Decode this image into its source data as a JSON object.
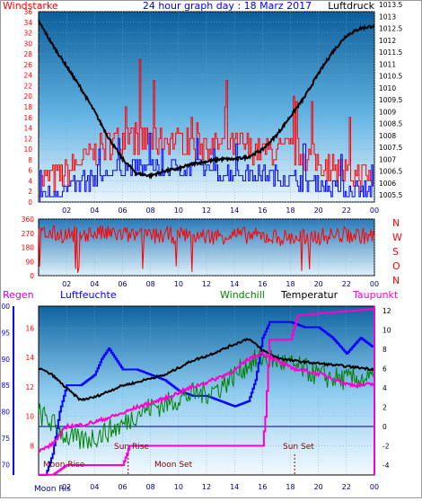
{
  "title": "24 hour graph day : 18 Marz 2017",
  "colors": {
    "red": "#ff0000",
    "blue": "#0000ff",
    "black": "#000000",
    "green": "#008000",
    "magenta": "#ff00cc",
    "navy": "#000080"
  },
  "wind_panel": {
    "left_label": "Windstarke",
    "right_label": "Luftdruck",
    "left_ticks": [
      "0",
      "2",
      "4",
      "6",
      "8",
      "10",
      "12",
      "14",
      "16",
      "18",
      "20",
      "22",
      "24",
      "26",
      "28",
      "30",
      "32",
      "34",
      "36"
    ],
    "right_ticks": [
      "1005.5",
      "1006",
      "1006.5",
      "1007",
      "1007.5",
      "1008",
      "1008.5",
      "1009",
      "1009.5",
      "1010",
      "1010.5",
      "1011",
      "1011.5",
      "1012",
      "1012.5",
      "1013",
      "1013.5"
    ],
    "x_ticks": [
      "02",
      "04",
      "06",
      "08",
      "10",
      "12",
      "14",
      "16",
      "18",
      "20",
      "22",
      "00"
    ]
  },
  "direction_panel": {
    "left_ticks": [
      "0",
      "90",
      "180",
      "270",
      "360"
    ],
    "right_letters": [
      "N",
      "W",
      "S",
      "O",
      "N"
    ],
    "x_ticks": [
      "02",
      "04",
      "06",
      "08",
      "10",
      "12",
      "14",
      "16",
      "18",
      "20",
      "22",
      "00"
    ]
  },
  "temp_panel": {
    "labels": {
      "regen": "Regen",
      "luftfeuchte": "Luftfeuchte",
      "windchill": "Windchill",
      "temperatur": "Temperatur",
      "taupunkt": "Taupunkt"
    },
    "humidity_ticks": [
      "70",
      "75",
      "80",
      "85",
      "90",
      "95",
      "100"
    ],
    "temp_ticks": [
      "8",
      "10",
      "12",
      "14",
      "16"
    ],
    "right_ticks": [
      "-4",
      "-2",
      "0",
      "2",
      "4",
      "6",
      "8",
      "10",
      "12"
    ],
    "x_ticks": [
      "02",
      "04",
      "06",
      "08",
      "10",
      "12",
      "14",
      "16",
      "18",
      "20",
      "22",
      "00"
    ],
    "annotations": {
      "moon_rise": "Moon Rise",
      "sun_rise": "Sun Rise",
      "moon_set": "Moon Set",
      "sun_set": "Sun Set",
      "moon_rise_axis": "Moon Ris"
    }
  },
  "chart_data": [
    {
      "type": "line",
      "title": "24 hour graph day : 18 Marz 2017",
      "x_range": [
        0,
        24
      ],
      "x_tick_labels": [
        "02",
        "04",
        "06",
        "08",
        "10",
        "12",
        "14",
        "16",
        "18",
        "20",
        "22",
        "00"
      ],
      "series": [
        {
          "name": "Windstarke",
          "axis": "left",
          "ylim": [
            0,
            36
          ],
          "x": [
            0,
            2,
            4,
            6,
            8,
            10,
            12,
            14,
            16,
            18,
            20,
            22,
            24
          ],
          "values": [
            3,
            5,
            9,
            12,
            11,
            11,
            10,
            10,
            9,
            9,
            7,
            5,
            4
          ]
        },
        {
          "axis": "left",
          "ylim": [
            0,
            36
          ],
          "x": [
            0,
            2,
            4,
            6,
            8,
            10,
            12,
            14,
            16,
            18,
            20,
            22,
            24
          ],
          "values": [
            1,
            2,
            4,
            6,
            6,
            6,
            6,
            5,
            5,
            4,
            3,
            2,
            2
          ]
        },
        {
          "name": "Luftdruck",
          "axis": "right",
          "ylim": [
            1005.5,
            1013.5
          ],
          "x": [
            0,
            1,
            2,
            3,
            4,
            5,
            6,
            7,
            8,
            9,
            10,
            11,
            12,
            13,
            14,
            15,
            16,
            17,
            18,
            19,
            20,
            21,
            22,
            23,
            24
          ],
          "values": [
            1012.8,
            1011.8,
            1010.9,
            1010.0,
            1009.0,
            1007.9,
            1007.0,
            1006.4,
            1006.3,
            1006.5,
            1006.6,
            1006.8,
            1006.9,
            1007.0,
            1007.0,
            1007.1,
            1007.4,
            1008.0,
            1008.8,
            1009.6,
            1010.6,
            1011.5,
            1012.2,
            1012.5,
            1012.6
          ]
        }
      ]
    },
    {
      "type": "line",
      "ylim": [
        0,
        360
      ],
      "x_range": [
        0,
        24
      ],
      "x_tick_labels": [
        "02",
        "04",
        "06",
        "08",
        "10",
        "12",
        "14",
        "16",
        "18",
        "20",
        "22",
        "00"
      ],
      "series": [
        {
          "x": [
            0,
            2,
            4,
            6,
            8,
            10,
            12,
            14,
            16,
            18,
            20,
            22,
            24
          ],
          "values": [
            270,
            260,
            270,
            260,
            250,
            260,
            250,
            260,
            250,
            240,
            250,
            260,
            250
          ]
        }
      ]
    },
    {
      "type": "line",
      "x_range": [
        0,
        24
      ],
      "x_tick_labels": [
        "02",
        "04",
        "06",
        "08",
        "10",
        "12",
        "14",
        "16",
        "18",
        "20",
        "22",
        "00"
      ],
      "series": [
        {
          "name": "Regen",
          "axis": "right",
          "ylim": [
            -5,
            13
          ],
          "x": [
            0,
            1,
            1.5,
            2,
            6,
            6.5,
            16,
            16.2,
            16.5,
            18,
            18.5,
            24
          ],
          "values": [
            -5,
            -5,
            -4.5,
            -4,
            -4,
            -2,
            -2,
            1,
            9,
            9,
            11.5,
            12.2
          ]
        },
        {
          "name": "Luftfeuchte",
          "axis": "humidity",
          "ylim": [
            68,
            100
          ],
          "x": [
            0,
            0.5,
            1,
            1.5,
            2,
            3,
            4,
            4.5,
            5,
            5.5,
            6,
            7,
            8,
            9,
            10,
            11,
            12,
            13,
            14,
            15,
            15.5,
            16,
            16.5,
            17,
            18,
            19,
            20,
            21,
            22,
            23,
            24
          ],
          "values": [
            68,
            68,
            72,
            80,
            85,
            85,
            87,
            90,
            92,
            90,
            88,
            88,
            87,
            86,
            84,
            83,
            83,
            82,
            81,
            82,
            86,
            94,
            97,
            97,
            97,
            96,
            96,
            94,
            91,
            94,
            92
          ]
        },
        {
          "name": "Windchill",
          "axis": "temp",
          "ylim": [
            6,
            17.5
          ],
          "x": [
            0,
            1,
            2,
            3,
            4,
            5,
            6,
            7,
            8,
            9,
            10,
            11,
            12,
            13,
            14,
            15,
            16,
            17,
            18,
            19,
            20,
            21,
            22,
            23,
            24
          ],
          "values": [
            10.2,
            9.5,
            8.6,
            8.3,
            8.6,
            9.0,
            9.4,
            10.2,
            10.6,
            10.8,
            11.2,
            11.5,
            11.6,
            12.0,
            12.8,
            13.6,
            14.0,
            13.8,
            13.5,
            13.2,
            12.8,
            12.6,
            12.5,
            12.6,
            12.5
          ]
        },
        {
          "name": "Temperatur",
          "axis": "temp",
          "ylim": [
            6,
            17.5
          ],
          "x": [
            0,
            1,
            2,
            3,
            4,
            5,
            6,
            7,
            8,
            9,
            10,
            11,
            12,
            13,
            14,
            15,
            16,
            17,
            18,
            19,
            20,
            21,
            22,
            23,
            24
          ],
          "values": [
            13.3,
            12.8,
            11.9,
            11.1,
            11.3,
            11.7,
            12.1,
            12.3,
            12.6,
            12.8,
            13.3,
            13.8,
            14.1,
            14.5,
            14.9,
            15.3,
            14.5,
            14.0,
            13.8,
            13.7,
            13.6,
            13.5,
            13.4,
            13.3,
            13.2
          ]
        },
        {
          "name": "Taupunkt",
          "axis": "temp",
          "ylim": [
            6,
            17.5
          ],
          "x": [
            0,
            1,
            2,
            3,
            4,
            5,
            6,
            7,
            8,
            9,
            10,
            11,
            12,
            13,
            14,
            15,
            16,
            17,
            18,
            19,
            20,
            21,
            22,
            23,
            24
          ],
          "values": [
            7.6,
            8.1,
            9.3,
            9.4,
            9.6,
            9.9,
            10.2,
            10.6,
            10.9,
            11.2,
            11.6,
            12.0,
            12.3,
            12.7,
            13.1,
            13.9,
            14.3,
            13.8,
            13.3,
            13.1,
            12.9,
            12.6,
            12.2,
            12.1,
            12.2
          ]
        }
      ]
    }
  ]
}
